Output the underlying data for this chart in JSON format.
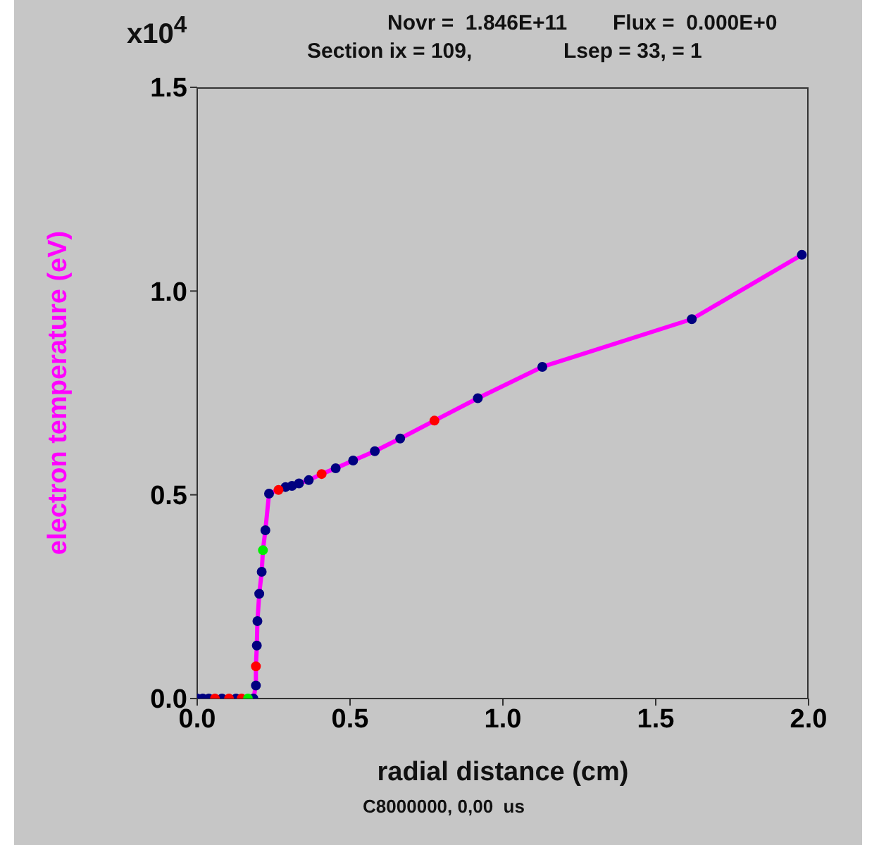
{
  "chart_data": {
    "type": "line",
    "xlabel": "radial distance (cm)",
    "ylabel": "electron temperature (eV)",
    "annotations": [
      "x10$^{4}$",
      "Novr =  1.846E+11",
      "Flux =  0.000E+0",
      "Section ix = 109,",
      "Lsep = 33, = 1",
      "C8000000, 0,00  us"
    ],
    "xlim": [
      0,
      2
    ],
    "xticks": [
      {
        "value": 0,
        "label": "0.0"
      },
      {
        "value": 0.5,
        "label": "0.5"
      },
      {
        "value": 1,
        "label": "1.0"
      },
      {
        "value": 1.5,
        "label": "1.5"
      },
      {
        "value": 2,
        "label": "2.0"
      }
    ],
    "ylim": [
      0,
      1.5
    ],
    "yticks": [
      {
        "value": 0,
        "label": "0.0"
      },
      {
        "value": 0.5,
        "label": "0.5"
      },
      {
        "value": 1,
        "label": "1.0"
      },
      {
        "value": 1.5,
        "label": "1.5"
      }
    ],
    "series": [
      {
        "type": "line",
        "color": "#ff00ff",
        "marker": "none",
        "x": [
          0.184,
          0.192,
          0.192,
          0.195,
          0.197,
          0.203,
          0.211,
          0.215,
          0.223,
          0.235,
          0.266,
          0.289,
          0.31,
          0.333,
          0.365,
          0.407,
          0.453,
          0.51,
          0.581,
          0.664,
          0.776,
          0.918,
          1.129,
          1.618,
          1.978
        ],
        "values": [
          0,
          0.032,
          0.079,
          0.13,
          0.19,
          0.257,
          0.311,
          0.364,
          0.413,
          0.503,
          0.512,
          0.519,
          0.522,
          0.528,
          0.536,
          0.551,
          0.565,
          0.584,
          0.607,
          0.638,
          0.682,
          0.737,
          0.814,
          0.931,
          1.089
        ]
      },
      {
        "type": "scatter",
        "color": "#000080",
        "marker": "circle",
        "x": [
          0,
          0.018,
          0.038,
          0.081,
          0.127,
          0.184,
          0.192,
          0.195,
          0.197,
          0.203,
          0.211,
          0.223,
          0.235,
          0.289,
          0.31,
          0.333,
          0.365,
          0.453,
          0.51,
          0.581,
          0.664,
          0.918,
          1.129,
          1.618,
          1.978
        ],
        "values": [
          0,
          0,
          0,
          0,
          0,
          0,
          0.032,
          0.13,
          0.19,
          0.257,
          0.311,
          0.413,
          0.503,
          0.519,
          0.522,
          0.528,
          0.536,
          0.565,
          0.584,
          0.607,
          0.638,
          0.737,
          0.814,
          0.931,
          1.089
        ]
      },
      {
        "type": "scatter",
        "color": "#ff0000",
        "marker": "circle",
        "x": [
          0.058,
          0.104,
          0.145,
          0.192,
          0.266,
          0.407,
          0.776
        ],
        "values": [
          0,
          0,
          0,
          0.079,
          0.512,
          0.551,
          0.682
        ]
      },
      {
        "type": "scatter",
        "color": "#00ee00",
        "marker": "circle",
        "x": [
          0.166,
          0.215
        ],
        "values": [
          0,
          0.364
        ]
      }
    ]
  }
}
